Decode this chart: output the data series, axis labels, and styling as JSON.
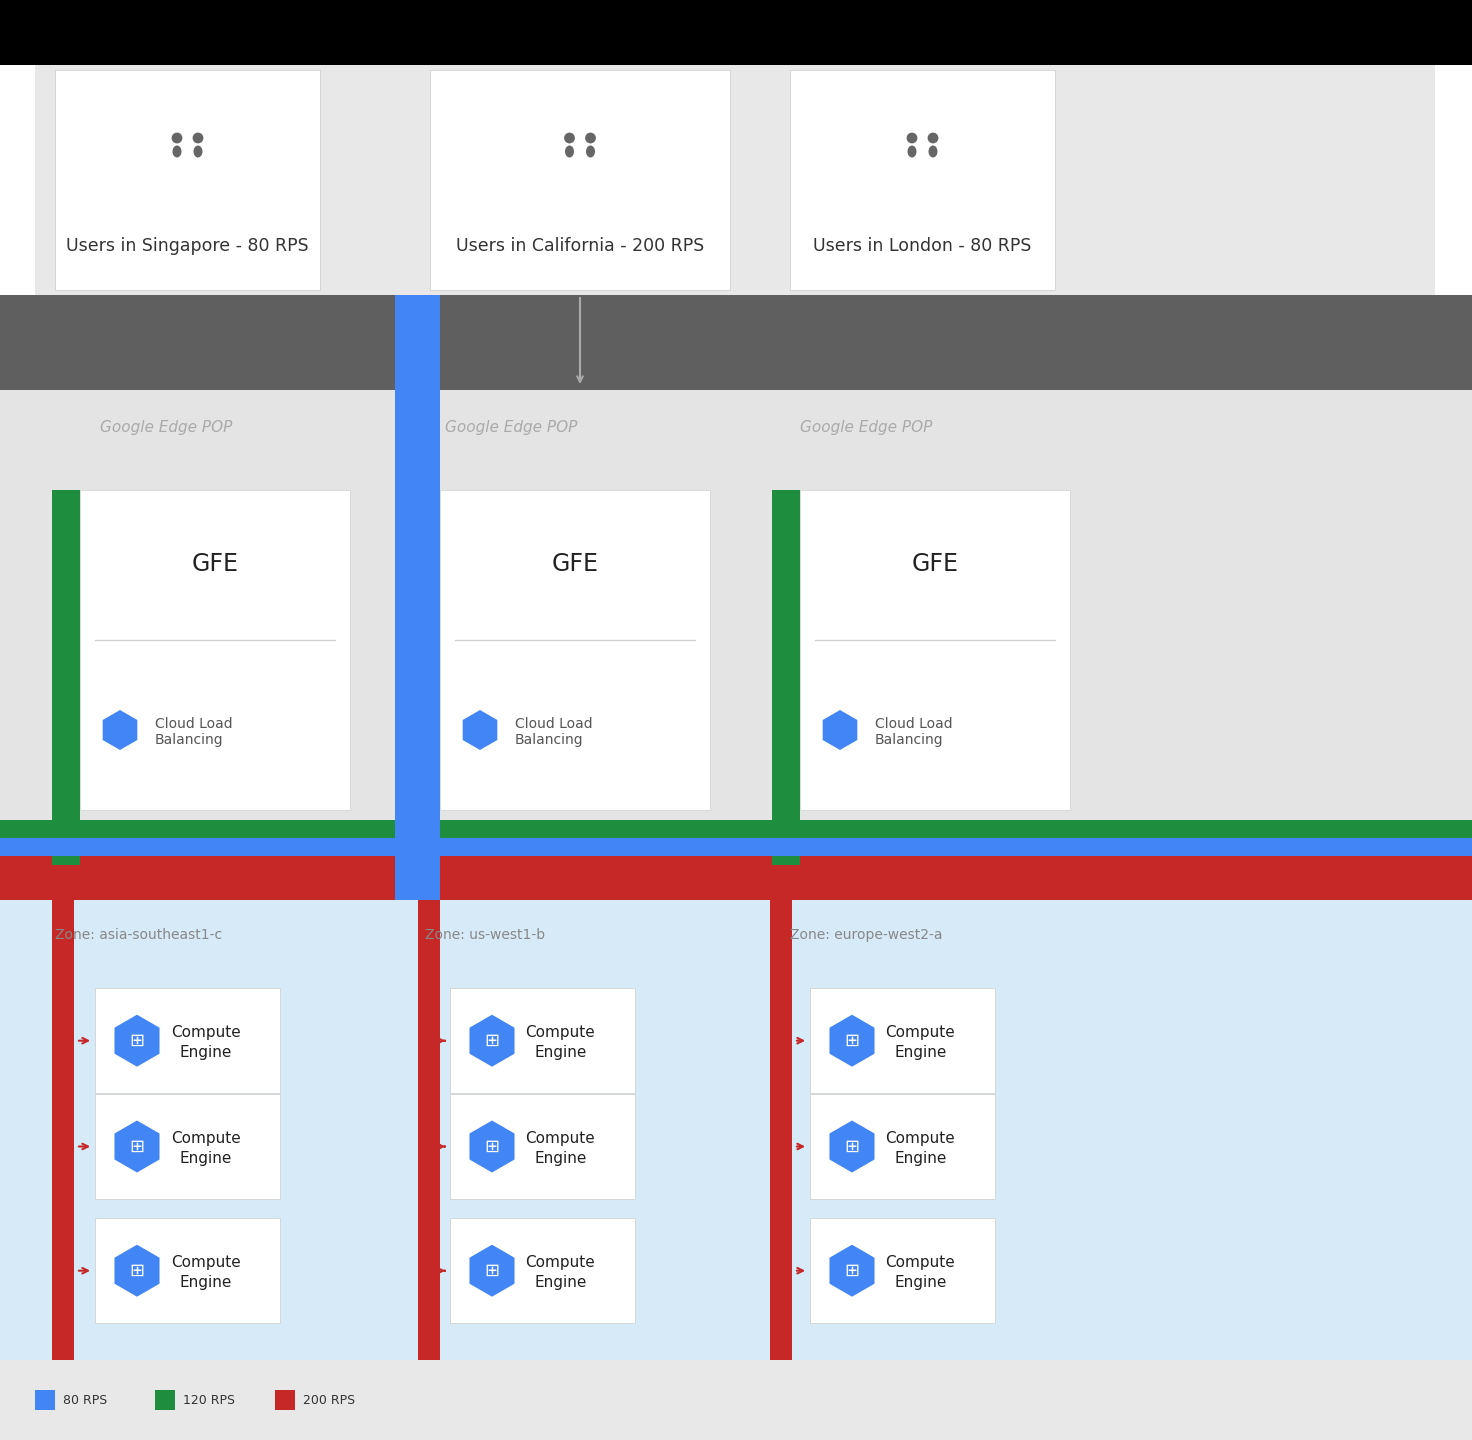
{
  "fig_width": 14.72,
  "fig_height": 14.4,
  "bg_black": "#000000",
  "bg_gray_dark": "#5f5f5f",
  "bg_gray_light": "#e8e8e8",
  "bg_gfe_area": "#e4e4e4",
  "bg_light_blue": "#d6eaf8",
  "bg_white": "#ffffff",
  "color_green": "#1e8e3e",
  "color_blue": "#4285f4",
  "color_red": "#c62828",
  "color_text_gray": "#9e9e9e",
  "color_text_dark": "#212121",
  "user_labels": [
    "Users in Singapore - 80 RPS",
    "Users in California - 200 RPS",
    "Users in London - 80 RPS"
  ],
  "zone_labels": [
    "Zone: asia-southeast1-c",
    "Zone: us-west1-b",
    "Zone: europe-west2-a"
  ],
  "legend_items": [
    {
      "color": "#4285f4",
      "label": "80 RPS"
    },
    {
      "color": "#1e8e3e",
      "label": "120 RPS"
    },
    {
      "color": "#c62828",
      "label": "200 RPS"
    }
  ]
}
